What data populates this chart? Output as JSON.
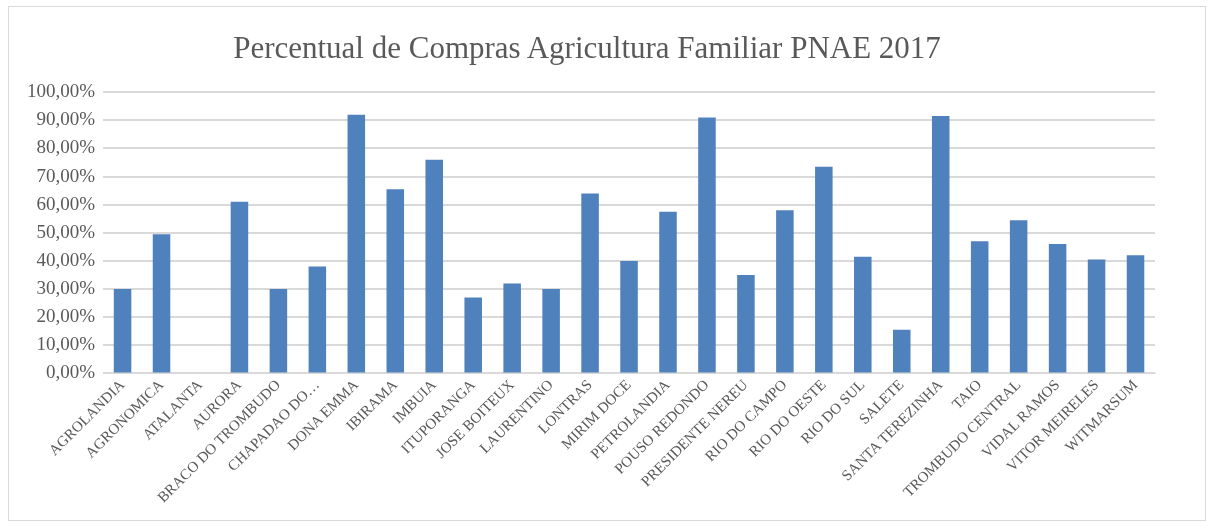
{
  "chart_data": {
    "type": "bar",
    "title": "Percentual de Compras Agricultura Familiar PNAE 2017",
    "categories": [
      "AGROLANDIA",
      "AGRONOMICA",
      "ATALANTA",
      "AURORA",
      "BRACO DO TROMBUDO",
      "CHAPADAO DO…",
      "DONA EMMA",
      "IBIRAMA",
      "IMBUIA",
      "ITUPORANGA",
      "JOSE BOITEUX",
      "LAURENTINO",
      "LONTRAS",
      "MIRIM DOCE",
      "PETROLANDIA",
      "POUSO REDONDO",
      "PRESIDENTE NEREU",
      "RIO DO CAMPO",
      "RIO DO OESTE",
      "RIO DO SUL",
      "SALETE",
      "SANTA TEREZINHA",
      "TAIO",
      "TROMBUDO CENTRAL",
      "VIDAL RAMOS",
      "VITOR MEIRELES",
      "WITMARSUM"
    ],
    "values": [
      30,
      49.5,
      0,
      61,
      30,
      38,
      92,
      65.5,
      76,
      27,
      32,
      30,
      64,
      40,
      57.5,
      91,
      35,
      58,
      73.5,
      41.5,
      15.5,
      91.5,
      47,
      54.5,
      46,
      40.5,
      42
    ],
    "color": "#4f81bd",
    "ylim": [
      0,
      100
    ],
    "yticks": [
      {
        "value": 0,
        "label": "0,00%"
      },
      {
        "value": 10,
        "label": "10,00%"
      },
      {
        "value": 20,
        "label": "20,00%"
      },
      {
        "value": 30,
        "label": "30,00%"
      },
      {
        "value": 40,
        "label": "40,00%"
      },
      {
        "value": 50,
        "label": "50,00%"
      },
      {
        "value": 60,
        "label": "60,00%"
      },
      {
        "value": 70,
        "label": "70,00%"
      },
      {
        "value": 80,
        "label": "80,00%"
      },
      {
        "value": 90,
        "label": "90,00%"
      },
      {
        "value": 100,
        "label": "100,00%"
      }
    ],
    "grid": "y"
  }
}
